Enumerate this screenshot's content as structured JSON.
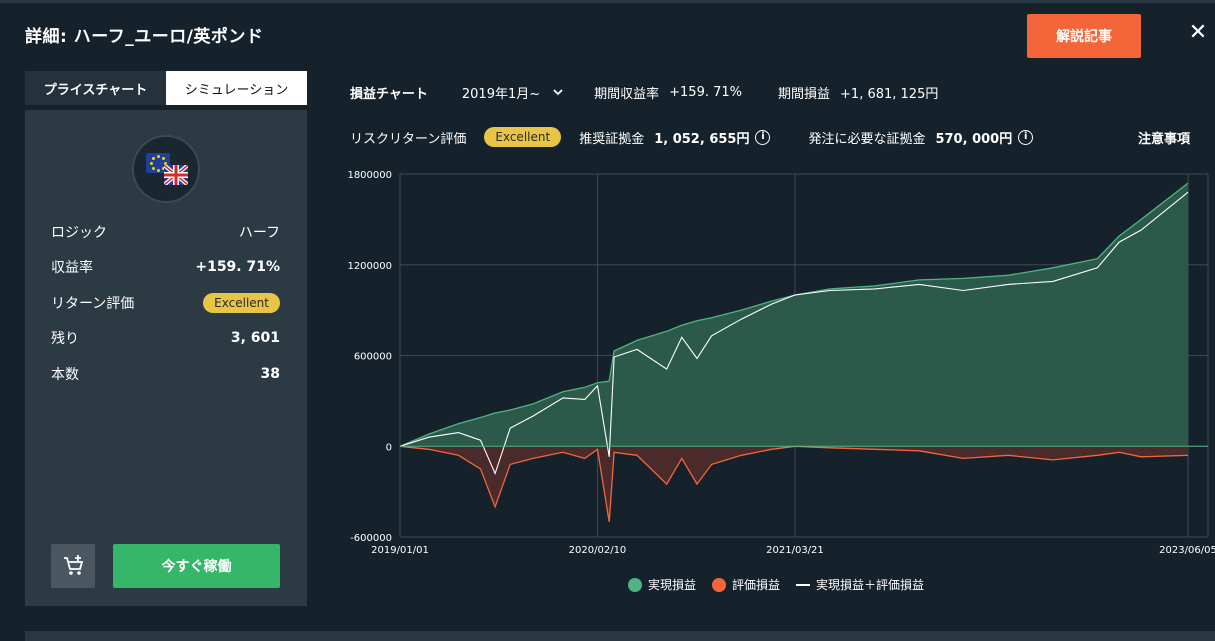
{
  "window": {
    "title": "詳細: ハーフ_ユーロ/英ポンド",
    "article_button": "解説記事",
    "close_icon": "✕"
  },
  "tabs": [
    {
      "label": "プライスチャート"
    },
    {
      "label": "シミュレーション"
    }
  ],
  "pair": {
    "icon": "eur-gbp-flag-icon"
  },
  "info": {
    "logic_label": "ロジック",
    "logic_value": "ハーフ",
    "return_label": "収益率",
    "return_value": "+159. 71%",
    "rating_label": "リターン評価",
    "rating_value": "Excellent",
    "remain_label": "残り",
    "remain_value": "3, 601",
    "count_label": "本数",
    "count_value": "38"
  },
  "actions": {
    "cart_icon": "add-to-cart-icon",
    "run_label": "今すぐ稼働"
  },
  "summary": {
    "chart_label": "損益チャート",
    "period_select": "2019年1月~",
    "period_return_label": "期間収益率",
    "period_return_value": "+159. 71%",
    "period_profit_label": "期間損益",
    "period_profit_value": "+1, 681, 125円",
    "risk_label": "リスクリターン評価",
    "risk_value": "Excellent",
    "recommended_label": "推奨証拠金",
    "recommended_value": "1, 052, 655円",
    "required_label": "発注に必要な証拠金",
    "required_value": "570, 000円",
    "notice_label": "注意事項"
  },
  "colors": {
    "realized": "#4fb384",
    "realized_fill": "#2c5a4a",
    "unrealized": "#f4663a",
    "unrealized_fill": "#4a2a2a",
    "badge": "#e8c547",
    "accent": "#f4663a",
    "run_button": "#35b669"
  },
  "chart_data": {
    "type": "area",
    "x_tick_labels": [
      "2019/01/01",
      "2020/02/10",
      "2021/03/21",
      "2023/06/05"
    ],
    "y_tick_labels": [
      "1800000",
      "1200000",
      "600000",
      "0",
      "-600000"
    ],
    "ylim": [
      -600000,
      1800000
    ],
    "legend_placement": "bottom",
    "x": [
      "2019/01/01",
      "2019/03/01",
      "2019/05/01",
      "2019/06/15",
      "2019/07/15",
      "2019/08/15",
      "2019/10/01",
      "2019/12/01",
      "2020/01/15",
      "2020/02/10",
      "2020/03/05",
      "2020/03/15",
      "2020/05/01",
      "2020/07/01",
      "2020/08/01",
      "2020/09/01",
      "2020/10/01",
      "2020/12/01",
      "2021/02/01",
      "2021/03/21",
      "2021/06/01",
      "2021/09/01",
      "2021/12/01",
      "2022/03/01",
      "2022/06/01",
      "2022/09/01",
      "2022/12/01",
      "2023/01/15",
      "2023/03/01",
      "2023/06/05"
    ],
    "series": [
      {
        "name": "実現損益",
        "values": [
          0,
          80000,
          150000,
          190000,
          220000,
          240000,
          280000,
          360000,
          390000,
          420000,
          430000,
          630000,
          700000,
          760000,
          800000,
          830000,
          850000,
          900000,
          960000,
          1000000,
          1040000,
          1060000,
          1100000,
          1110000,
          1130000,
          1180000,
          1240000,
          1390000,
          1500000,
          1740000
        ]
      },
      {
        "name": "評価損益",
        "values": [
          0,
          -20000,
          -60000,
          -150000,
          -400000,
          -120000,
          -80000,
          -40000,
          -80000,
          -20000,
          -500000,
          -40000,
          -60000,
          -250000,
          -80000,
          -250000,
          -120000,
          -60000,
          -20000,
          0,
          -10000,
          -20000,
          -30000,
          -80000,
          -60000,
          -90000,
          -60000,
          -40000,
          -70000,
          -60000
        ]
      },
      {
        "name": "実現損益＋評価損益",
        "values": [
          0,
          60000,
          90000,
          40000,
          -180000,
          120000,
          200000,
          320000,
          310000,
          400000,
          -70000,
          590000,
          640000,
          510000,
          720000,
          580000,
          730000,
          840000,
          940000,
          1000000,
          1030000,
          1040000,
          1070000,
          1030000,
          1070000,
          1090000,
          1180000,
          1350000,
          1430000,
          1680000
        ]
      }
    ]
  }
}
